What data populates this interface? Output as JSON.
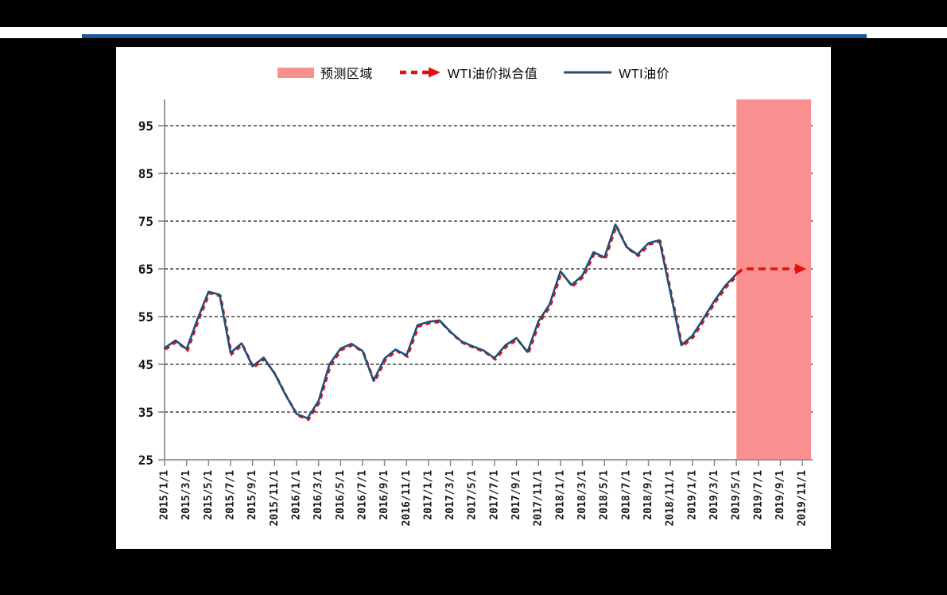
{
  "page": {
    "background_color": "#000000",
    "band_color": "#ffffff",
    "header_rule_color": "#1d5796",
    "panel_color": "#ffffff"
  },
  "chart_data": {
    "type": "line",
    "title": "",
    "xlabel": "",
    "ylabel": "",
    "grid": "horizontal-dashed",
    "legend_position": "top-center",
    "x_start_month": "2015/1/1",
    "frequency": "monthly",
    "y_ticks": [
      25,
      35,
      45,
      55,
      65,
      75,
      85,
      95
    ],
    "ylim": [
      25,
      100.5
    ],
    "x_tick_labels": [
      "2015/1/1",
      "2015/3/1",
      "2015/5/1",
      "2015/7/1",
      "2015/9/1",
      "2015/11/1",
      "2016/1/1",
      "2016/3/1",
      "2016/5/1",
      "2016/7/1",
      "2016/9/1",
      "2016/11/1",
      "2017/1/1",
      "2017/3/1",
      "2017/5/1",
      "2017/7/1",
      "2017/9/1",
      "2017/11/1",
      "2018/1/1",
      "2018/3/1",
      "2018/5/1",
      "2018/7/1",
      "2018/9/1",
      "2018/11/1",
      "2019/1/1",
      "2019/3/1",
      "2019/5/1",
      "2019/7/1",
      "2019/9/1",
      "2019/11/1"
    ],
    "series": [
      {
        "name": "WTI油价",
        "color": "#1f4e79",
        "style": "solid",
        "values": [
          48.4,
          50.0,
          48.2,
          54.5,
          60.2,
          59.6,
          47.4,
          49.4,
          44.6,
          46.4,
          43.1,
          38.6,
          34.6,
          33.7,
          37.3,
          45.0,
          48.3,
          49.3,
          47.8,
          41.6,
          46.2,
          48.1,
          46.9,
          53.2,
          53.9,
          54.2,
          51.8,
          49.8,
          48.8,
          47.9,
          46.3,
          49.0,
          50.5,
          47.6,
          54.0,
          57.5,
          64.5,
          61.6,
          63.6,
          68.5,
          67.4,
          74.3,
          69.6,
          68.0,
          70.4,
          71.0,
          60.0,
          49.0,
          51.0,
          54.6,
          58.3,
          61.5,
          63.9
        ]
      },
      {
        "name": "WTI油价拟合值",
        "color": "#e60f0f",
        "style": "dashed",
        "values": [
          48.4,
          50.0,
          48.2,
          54.5,
          60.2,
          59.6,
          47.4,
          49.4,
          44.6,
          46.4,
          43.1,
          38.6,
          34.6,
          33.7,
          37.3,
          45.0,
          48.3,
          49.3,
          47.8,
          41.6,
          46.2,
          48.1,
          46.9,
          53.2,
          53.9,
          54.2,
          51.8,
          49.8,
          48.8,
          47.9,
          46.3,
          49.0,
          50.5,
          47.6,
          54.0,
          57.5,
          64.5,
          61.6,
          63.6,
          68.5,
          67.4,
          74.3,
          69.6,
          68.0,
          70.4,
          71.0,
          60.0,
          49.0,
          51.0,
          54.6,
          58.3,
          61.5,
          63.9
        ],
        "forecast": {
          "start": "2019/5/1",
          "end": "2019/11/1",
          "value": 65,
          "arrow": true
        }
      }
    ],
    "forecast_region": {
      "label": "预测区域",
      "color": "#f98f8f",
      "start": "2019/5/1",
      "covers_full_height": true
    }
  }
}
